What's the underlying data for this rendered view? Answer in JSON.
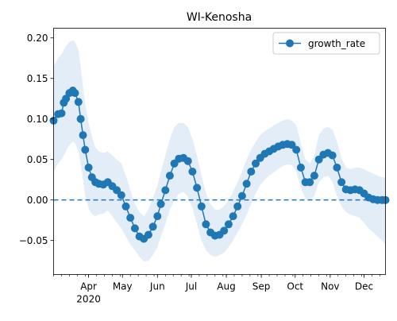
{
  "chart_data": {
    "type": "line",
    "title": "WI-Kenosha",
    "xlabel": "",
    "ylabel": "",
    "x_ticks": [
      {
        "date": "2020-04-01",
        "label": "Apr",
        "label2": "2020"
      },
      {
        "date": "2020-05-01",
        "label": "May",
        "label2": ""
      },
      {
        "date": "2020-06-01",
        "label": "Jun",
        "label2": ""
      },
      {
        "date": "2020-07-01",
        "label": "Jul",
        "label2": ""
      },
      {
        "date": "2020-08-01",
        "label": "Aug",
        "label2": ""
      },
      {
        "date": "2020-09-01",
        "label": "Sep",
        "label2": ""
      },
      {
        "date": "2020-10-01",
        "label": "Oct",
        "label2": ""
      },
      {
        "date": "2020-11-01",
        "label": "Nov",
        "label2": ""
      },
      {
        "date": "2020-12-01",
        "label": "Dec",
        "label2": ""
      }
    ],
    "xlim": [
      "2020-03-01",
      "2020-12-20"
    ],
    "y_ticks": [
      {
        "value": 0.2,
        "label": "0.20"
      },
      {
        "value": 0.15,
        "label": "0.15"
      },
      {
        "value": 0.1,
        "label": "0.10"
      },
      {
        "value": 0.05,
        "label": "0.05"
      },
      {
        "value": 0.0,
        "label": "0.00"
      },
      {
        "value": -0.05,
        "label": "−0.05"
      }
    ],
    "ylim": [
      -0.092,
      0.212
    ],
    "legend": {
      "position": "top-right",
      "entries": [
        "growth_rate"
      ]
    },
    "reference_line": {
      "y": 0.0,
      "style": "dashed"
    },
    "grid": false,
    "colors": {
      "line": "#1f77b4",
      "band": "#dce9f5"
    },
    "series": [
      {
        "name": "growth_rate",
        "x": [
          "2020-03-01",
          "2020-03-05",
          "2020-03-08",
          "2020-03-10",
          "2020-03-12",
          "2020-03-15",
          "2020-03-18",
          "2020-03-20",
          "2020-03-23",
          "2020-03-25",
          "2020-03-27",
          "2020-03-29",
          "2020-04-01",
          "2020-04-04",
          "2020-04-07",
          "2020-04-10",
          "2020-04-14",
          "2020-04-18",
          "2020-04-22",
          "2020-04-26",
          "2020-04-30",
          "2020-05-04",
          "2020-05-08",
          "2020-05-12",
          "2020-05-16",
          "2020-05-20",
          "2020-05-24",
          "2020-05-28",
          "2020-06-01",
          "2020-06-04",
          "2020-06-08",
          "2020-06-12",
          "2020-06-16",
          "2020-06-20",
          "2020-06-24",
          "2020-06-28",
          "2020-07-02",
          "2020-07-06",
          "2020-07-10",
          "2020-07-14",
          "2020-07-18",
          "2020-07-22",
          "2020-07-26",
          "2020-07-30",
          "2020-08-03",
          "2020-08-07",
          "2020-08-11",
          "2020-08-15",
          "2020-08-19",
          "2020-08-23",
          "2020-08-27",
          "2020-08-31",
          "2020-09-04",
          "2020-09-08",
          "2020-09-12",
          "2020-09-16",
          "2020-09-20",
          "2020-09-24",
          "2020-09-28",
          "2020-10-02",
          "2020-10-06",
          "2020-10-10",
          "2020-10-14",
          "2020-10-18",
          "2020-10-22",
          "2020-10-26",
          "2020-10-30",
          "2020-11-03",
          "2020-11-07",
          "2020-11-11",
          "2020-11-15",
          "2020-11-19",
          "2020-11-23",
          "2020-11-27",
          "2020-12-01",
          "2020-12-05",
          "2020-12-09",
          "2020-12-13",
          "2020-12-17",
          "2020-12-20"
        ],
        "values": [
          0.098,
          0.106,
          0.107,
          0.12,
          0.125,
          0.132,
          0.135,
          0.132,
          0.121,
          0.1,
          0.08,
          0.062,
          0.04,
          0.028,
          0.022,
          0.02,
          0.019,
          0.022,
          0.017,
          0.012,
          0.006,
          -0.008,
          -0.022,
          -0.035,
          -0.045,
          -0.048,
          -0.043,
          -0.033,
          -0.02,
          -0.005,
          0.012,
          0.03,
          0.045,
          0.051,
          0.052,
          0.048,
          0.035,
          0.015,
          -0.008,
          -0.03,
          -0.04,
          -0.044,
          -0.043,
          -0.038,
          -0.03,
          -0.02,
          -0.008,
          0.005,
          0.02,
          0.035,
          0.045,
          0.052,
          0.057,
          0.06,
          0.063,
          0.066,
          0.068,
          0.069,
          0.068,
          0.062,
          0.04,
          0.022,
          0.022,
          0.03,
          0.05,
          0.056,
          0.058,
          0.055,
          0.04,
          0.022,
          0.013,
          0.012,
          0.013,
          0.012,
          0.008,
          0.003,
          0.001,
          0.0,
          0.0,
          0.0
        ],
        "band_lower": [
          0.035,
          0.045,
          0.05,
          0.055,
          0.06,
          0.068,
          0.072,
          0.07,
          0.06,
          0.045,
          0.025,
          0.005,
          -0.01,
          -0.018,
          -0.02,
          -0.018,
          -0.017,
          -0.013,
          -0.02,
          -0.028,
          -0.035,
          -0.045,
          -0.055,
          -0.062,
          -0.07,
          -0.076,
          -0.075,
          -0.068,
          -0.058,
          -0.045,
          -0.03,
          -0.012,
          0.0,
          0.008,
          0.01,
          0.004,
          -0.01,
          -0.03,
          -0.05,
          -0.062,
          -0.068,
          -0.07,
          -0.068,
          -0.065,
          -0.058,
          -0.05,
          -0.04,
          -0.03,
          -0.018,
          -0.005,
          0.008,
          0.018,
          0.025,
          0.03,
          0.034,
          0.038,
          0.042,
          0.044,
          0.043,
          0.035,
          0.015,
          0.002,
          0.0,
          0.005,
          0.022,
          0.028,
          0.03,
          0.022,
          0.005,
          -0.008,
          -0.015,
          -0.018,
          -0.02,
          -0.022,
          -0.028,
          -0.035,
          -0.04,
          -0.045,
          -0.05,
          -0.055
        ],
        "band_upper": [
          0.165,
          0.175,
          0.18,
          0.185,
          0.19,
          0.195,
          0.197,
          0.195,
          0.185,
          0.165,
          0.14,
          0.118,
          0.095,
          0.078,
          0.065,
          0.06,
          0.058,
          0.06,
          0.055,
          0.05,
          0.045,
          0.03,
          0.012,
          -0.005,
          -0.015,
          -0.02,
          -0.012,
          0.002,
          0.018,
          0.035,
          0.055,
          0.075,
          0.09,
          0.095,
          0.095,
          0.09,
          0.075,
          0.055,
          0.03,
          0.008,
          -0.005,
          -0.012,
          -0.012,
          -0.008,
          0.0,
          0.01,
          0.022,
          0.035,
          0.05,
          0.062,
          0.072,
          0.08,
          0.085,
          0.088,
          0.092,
          0.095,
          0.098,
          0.1,
          0.098,
          0.092,
          0.07,
          0.05,
          0.045,
          0.055,
          0.08,
          0.088,
          0.09,
          0.087,
          0.072,
          0.052,
          0.04,
          0.038,
          0.04,
          0.04,
          0.038,
          0.035,
          0.033,
          0.03,
          0.028,
          0.028
        ]
      }
    ]
  }
}
